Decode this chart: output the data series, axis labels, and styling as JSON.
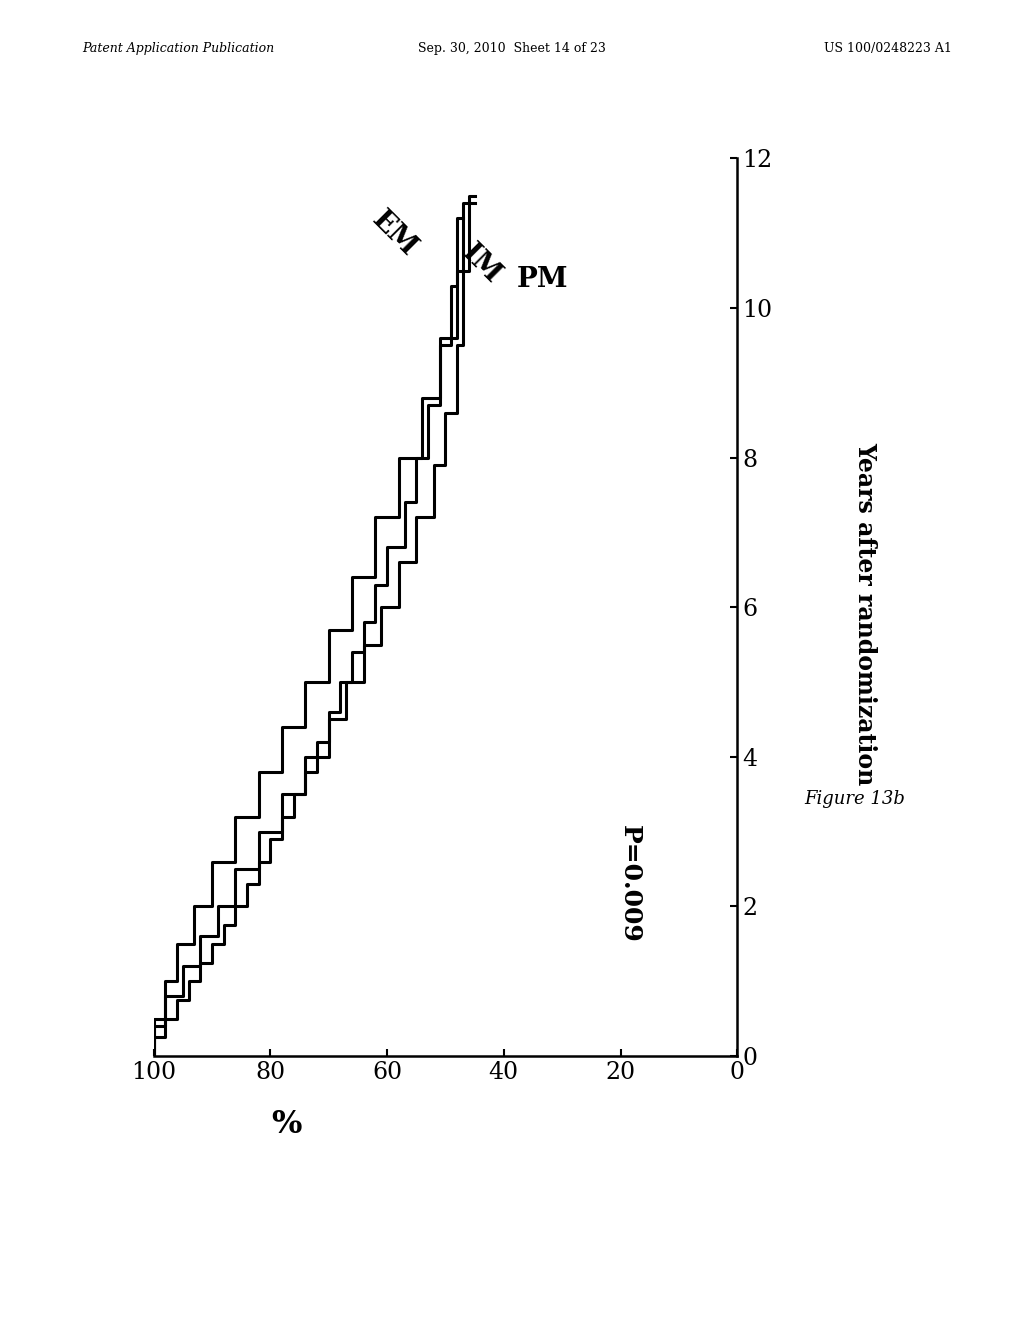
{
  "xlabel": "Years after randomization",
  "ylabel": "%",
  "xlim": [
    100,
    0
  ],
  "ylim": [
    0,
    12
  ],
  "xticks": [
    0,
    20,
    40,
    60,
    80,
    100
  ],
  "yticks": [
    0,
    2,
    4,
    6,
    8,
    10,
    12
  ],
  "p_value": "P=0.009",
  "figure_label": "Figure 13b",
  "header_left": "Patent Application Publication",
  "header_center": "Sep. 30, 2010  Sheet 14 of 23",
  "header_right": "US 100/0248223 A1",
  "em_years": [
    0.0,
    0.25,
    0.5,
    0.75,
    1.0,
    1.25,
    1.5,
    1.75,
    2.0,
    2.3,
    2.6,
    2.9,
    3.2,
    3.5,
    3.8,
    4.2,
    4.6,
    5.0,
    5.4,
    5.8,
    6.3,
    6.8,
    7.4,
    8.0,
    8.7,
    9.5,
    10.3,
    11.2
  ],
  "em_pct": [
    100,
    98,
    96,
    94,
    92,
    90,
    88,
    86,
    84,
    82,
    80,
    78,
    76,
    74,
    72,
    70,
    68,
    66,
    64,
    62,
    60,
    57,
    55,
    53,
    51,
    49,
    48,
    47
  ],
  "im_years": [
    0.0,
    0.4,
    0.8,
    1.2,
    1.6,
    2.0,
    2.5,
    3.0,
    3.5,
    4.0,
    4.5,
    5.0,
    5.5,
    6.0,
    6.6,
    7.2,
    7.9,
    8.6,
    9.5,
    10.5,
    11.5
  ],
  "im_pct": [
    100,
    98,
    95,
    92,
    89,
    86,
    82,
    78,
    74,
    70,
    67,
    64,
    61,
    58,
    55,
    52,
    50,
    48,
    47,
    46,
    45
  ],
  "pm_years": [
    0.0,
    0.5,
    1.0,
    1.5,
    2.0,
    2.6,
    3.2,
    3.8,
    4.4,
    5.0,
    5.7,
    6.4,
    7.2,
    8.0,
    8.8,
    9.6,
    10.5,
    11.4
  ],
  "pm_pct": [
    100,
    98,
    96,
    93,
    90,
    86,
    82,
    78,
    74,
    70,
    66,
    62,
    58,
    54,
    51,
    48,
    47,
    45
  ],
  "line_color": "#000000",
  "background_color": "#ffffff",
  "tick_fontsize": 17,
  "label_fontsize": 17,
  "annotation_fontsize": 18,
  "curve_label_fontsize": 20,
  "linewidth": 2.2
}
